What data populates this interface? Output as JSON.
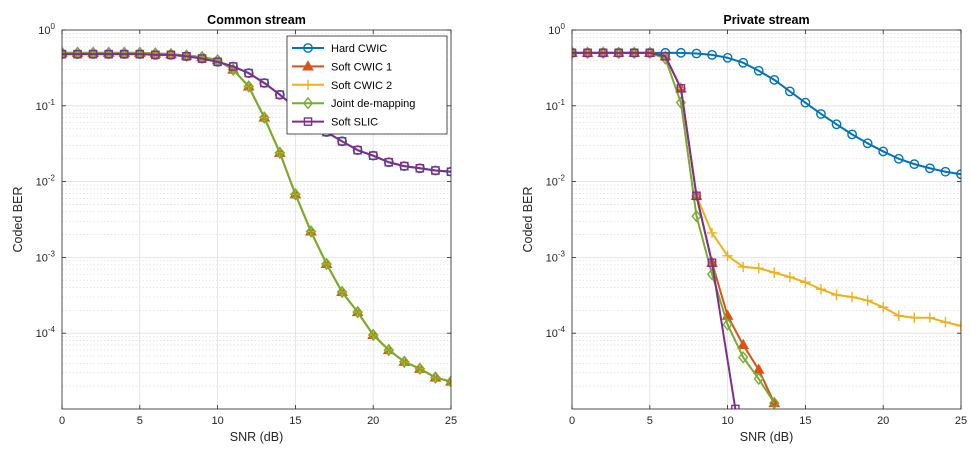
{
  "chart_data": [
    {
      "type": "line",
      "title": "Common stream",
      "xlabel": "SNR (dB)",
      "ylabel": "Coded BER",
      "xlim": [
        0,
        25
      ],
      "ylim": [
        1e-05,
        1
      ],
      "yscale": "log",
      "grid": true,
      "legend": "top-right",
      "xticks": [
        0,
        5,
        10,
        15,
        20,
        25
      ],
      "yticks": [
        {
          "value": 1,
          "base": "10",
          "exp": "0"
        },
        {
          "value": 0.1,
          "base": "10",
          "exp": "-1"
        },
        {
          "value": 0.01,
          "base": "10",
          "exp": "-2"
        },
        {
          "value": 0.001,
          "base": "10",
          "exp": "-3"
        },
        {
          "value": 0.0001,
          "base": "10",
          "exp": "-4"
        }
      ],
      "series": [
        {
          "name": "Hard CWIC",
          "color": "#0072BD",
          "marker": "circle",
          "x": [
            0,
            1,
            2,
            3,
            4,
            5,
            6,
            7,
            8,
            9,
            10,
            11,
            12,
            13,
            14,
            15,
            16,
            17,
            18,
            19,
            20,
            21,
            22,
            23,
            24,
            25
          ],
          "y": [
            0.48,
            0.48,
            0.48,
            0.48,
            0.48,
            0.48,
            0.47,
            0.47,
            0.45,
            0.42,
            0.38,
            0.33,
            0.27,
            0.2,
            0.14,
            0.095,
            0.065,
            0.045,
            0.034,
            0.026,
            0.022,
            0.018,
            0.016,
            0.015,
            0.014,
            0.0135
          ]
        },
        {
          "name": "Soft CWIC 1",
          "color": "#D95319",
          "marker": "triangle",
          "x": [
            0,
            1,
            2,
            3,
            4,
            5,
            6,
            7,
            8,
            9,
            10,
            11,
            12,
            13,
            14,
            15,
            16,
            17,
            18,
            19,
            20,
            21,
            22,
            23,
            24,
            25
          ],
          "y": [
            0.5,
            0.5,
            0.5,
            0.5,
            0.5,
            0.5,
            0.49,
            0.48,
            0.46,
            0.44,
            0.4,
            0.3,
            0.18,
            0.07,
            0.024,
            0.0068,
            0.0022,
            0.00082,
            0.00035,
            0.00019,
            9.5e-05,
            6e-05,
            4.2e-05,
            3.4e-05,
            2.6e-05,
            2.3e-05
          ]
        },
        {
          "name": "Soft CWIC 2",
          "color": "#EDB120",
          "marker": "plus",
          "x": [
            0,
            1,
            2,
            3,
            4,
            5,
            6,
            7,
            8,
            9,
            10,
            11,
            12,
            13,
            14,
            15,
            16,
            17,
            18,
            19,
            20,
            21,
            22,
            23,
            24,
            25
          ],
          "y": [
            0.5,
            0.5,
            0.5,
            0.5,
            0.5,
            0.5,
            0.49,
            0.48,
            0.46,
            0.44,
            0.4,
            0.3,
            0.18,
            0.07,
            0.024,
            0.0068,
            0.0022,
            0.00082,
            0.00035,
            0.00019,
            9.5e-05,
            6e-05,
            4.2e-05,
            3.4e-05,
            2.6e-05,
            2.3e-05
          ]
        },
        {
          "name": "Joint de-mapping",
          "color": "#77AC30",
          "marker": "diamond",
          "x": [
            0,
            1,
            2,
            3,
            4,
            5,
            6,
            7,
            8,
            9,
            10,
            11,
            12,
            13,
            14,
            15,
            16,
            17,
            18,
            19,
            20,
            21,
            22,
            23,
            24,
            25
          ],
          "y": [
            0.5,
            0.5,
            0.5,
            0.5,
            0.5,
            0.5,
            0.49,
            0.48,
            0.46,
            0.44,
            0.4,
            0.3,
            0.18,
            0.07,
            0.024,
            0.0068,
            0.0022,
            0.00082,
            0.00035,
            0.00019,
            9.5e-05,
            6e-05,
            4.2e-05,
            3.4e-05,
            2.6e-05,
            2.3e-05
          ]
        },
        {
          "name": "Soft SLIC",
          "color": "#7E2F8E",
          "marker": "square",
          "x": [
            0,
            1,
            2,
            3,
            4,
            5,
            6,
            7,
            8,
            9,
            10,
            11,
            12,
            13,
            14,
            15,
            16,
            17,
            18,
            19,
            20,
            21,
            22,
            23,
            24,
            25
          ],
          "y": [
            0.48,
            0.48,
            0.48,
            0.48,
            0.48,
            0.48,
            0.47,
            0.47,
            0.45,
            0.42,
            0.38,
            0.33,
            0.27,
            0.2,
            0.14,
            0.095,
            0.065,
            0.045,
            0.034,
            0.026,
            0.022,
            0.018,
            0.016,
            0.015,
            0.014,
            0.0135
          ]
        }
      ]
    },
    {
      "type": "line",
      "title": "Private stream",
      "xlabel": "SNR (dB)",
      "ylabel": "Coded BER",
      "xlim": [
        0,
        25
      ],
      "ylim": [
        1e-05,
        1
      ],
      "yscale": "log",
      "grid": true,
      "xticks": [
        0,
        5,
        10,
        15,
        20,
        25
      ],
      "yticks": [
        {
          "value": 1,
          "base": "10",
          "exp": "0"
        },
        {
          "value": 0.1,
          "base": "10",
          "exp": "-1"
        },
        {
          "value": 0.01,
          "base": "10",
          "exp": "-2"
        },
        {
          "value": 0.001,
          "base": "10",
          "exp": "-3"
        },
        {
          "value": 0.0001,
          "base": "10",
          "exp": "-4"
        }
      ],
      "series": [
        {
          "name": "Hard CWIC",
          "color": "#0072BD",
          "marker": "circle",
          "x": [
            0,
            1,
            2,
            3,
            4,
            5,
            6,
            7,
            8,
            9,
            10,
            11,
            12,
            13,
            14,
            15,
            16,
            17,
            18,
            19,
            20,
            21,
            22,
            23,
            24,
            25
          ],
          "y": [
            0.5,
            0.5,
            0.5,
            0.5,
            0.5,
            0.5,
            0.5,
            0.5,
            0.49,
            0.47,
            0.43,
            0.37,
            0.29,
            0.22,
            0.155,
            0.11,
            0.078,
            0.057,
            0.042,
            0.032,
            0.025,
            0.02,
            0.017,
            0.015,
            0.0135,
            0.0125
          ]
        },
        {
          "name": "Soft CWIC 1",
          "color": "#D95319",
          "marker": "triangle",
          "x": [
            0,
            1,
            2,
            3,
            4,
            5,
            6,
            7,
            8,
            9,
            10,
            11,
            12,
            13
          ],
          "y": [
            0.5,
            0.5,
            0.5,
            0.5,
            0.5,
            0.5,
            0.45,
            0.17,
            0.0065,
            0.00085,
            0.00017,
            7e-05,
            3.3e-05,
            1.2e-05
          ]
        },
        {
          "name": "Soft CWIC 2",
          "color": "#EDB120",
          "marker": "plus",
          "x": [
            0,
            1,
            2,
            3,
            4,
            5,
            6,
            7,
            8,
            9,
            10,
            11,
            12,
            13,
            14,
            15,
            16,
            17,
            18,
            19,
            20,
            21,
            22,
            23,
            24,
            25
          ],
          "y": [
            0.5,
            0.5,
            0.5,
            0.5,
            0.5,
            0.5,
            0.45,
            0.17,
            0.0065,
            0.0021,
            0.00105,
            0.00075,
            0.00072,
            0.00063,
            0.00055,
            0.00047,
            0.00038,
            0.00032,
            0.0003,
            0.00027,
            0.00022,
            0.00017,
            0.00016,
            0.00016,
            0.00014,
            0.000125
          ]
        },
        {
          "name": "Joint de-mapping",
          "color": "#77AC30",
          "marker": "diamond",
          "x": [
            0,
            1,
            2,
            3,
            4,
            5,
            6,
            7,
            8,
            9,
            10,
            11,
            12,
            13
          ],
          "y": [
            0.5,
            0.5,
            0.5,
            0.5,
            0.5,
            0.5,
            0.42,
            0.11,
            0.0035,
            0.0006,
            0.00013,
            4.8e-05,
            2.5e-05,
            1.2e-05
          ]
        },
        {
          "name": "Soft SLIC",
          "color": "#7E2F8E",
          "marker": "square",
          "x": [
            0,
            1,
            2,
            3,
            4,
            5,
            6,
            7,
            8,
            9,
            10.5
          ],
          "y": [
            0.5,
            0.5,
            0.5,
            0.5,
            0.5,
            0.5,
            0.45,
            0.17,
            0.0065,
            0.00085,
            1e-05
          ]
        }
      ]
    }
  ]
}
